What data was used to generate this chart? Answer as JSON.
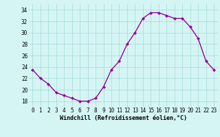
{
  "x": [
    0,
    1,
    2,
    3,
    4,
    5,
    6,
    7,
    8,
    9,
    10,
    11,
    12,
    13,
    14,
    15,
    16,
    17,
    18,
    19,
    20,
    21,
    22,
    23
  ],
  "y": [
    23.5,
    22.0,
    21.0,
    19.5,
    19.0,
    18.5,
    18.0,
    18.0,
    18.5,
    20.5,
    23.5,
    25.0,
    28.0,
    30.0,
    32.5,
    33.5,
    33.5,
    33.0,
    32.5,
    32.5,
    31.0,
    29.0,
    25.0,
    23.5
  ],
  "line_color": "#990099",
  "marker": "D",
  "markersize": 2.0,
  "linewidth": 1.0,
  "xlabel": "Windchill (Refroidissement éolien,°C)",
  "xlabel_fontsize": 6.0,
  "yticks": [
    18,
    20,
    22,
    24,
    26,
    28,
    30,
    32,
    34
  ],
  "xlim": [
    -0.5,
    23.5
  ],
  "ylim": [
    17.0,
    35.0
  ],
  "background_color": "#d5f5f5",
  "grid_color": "#aadddd",
  "tick_fontsize": 5.5
}
